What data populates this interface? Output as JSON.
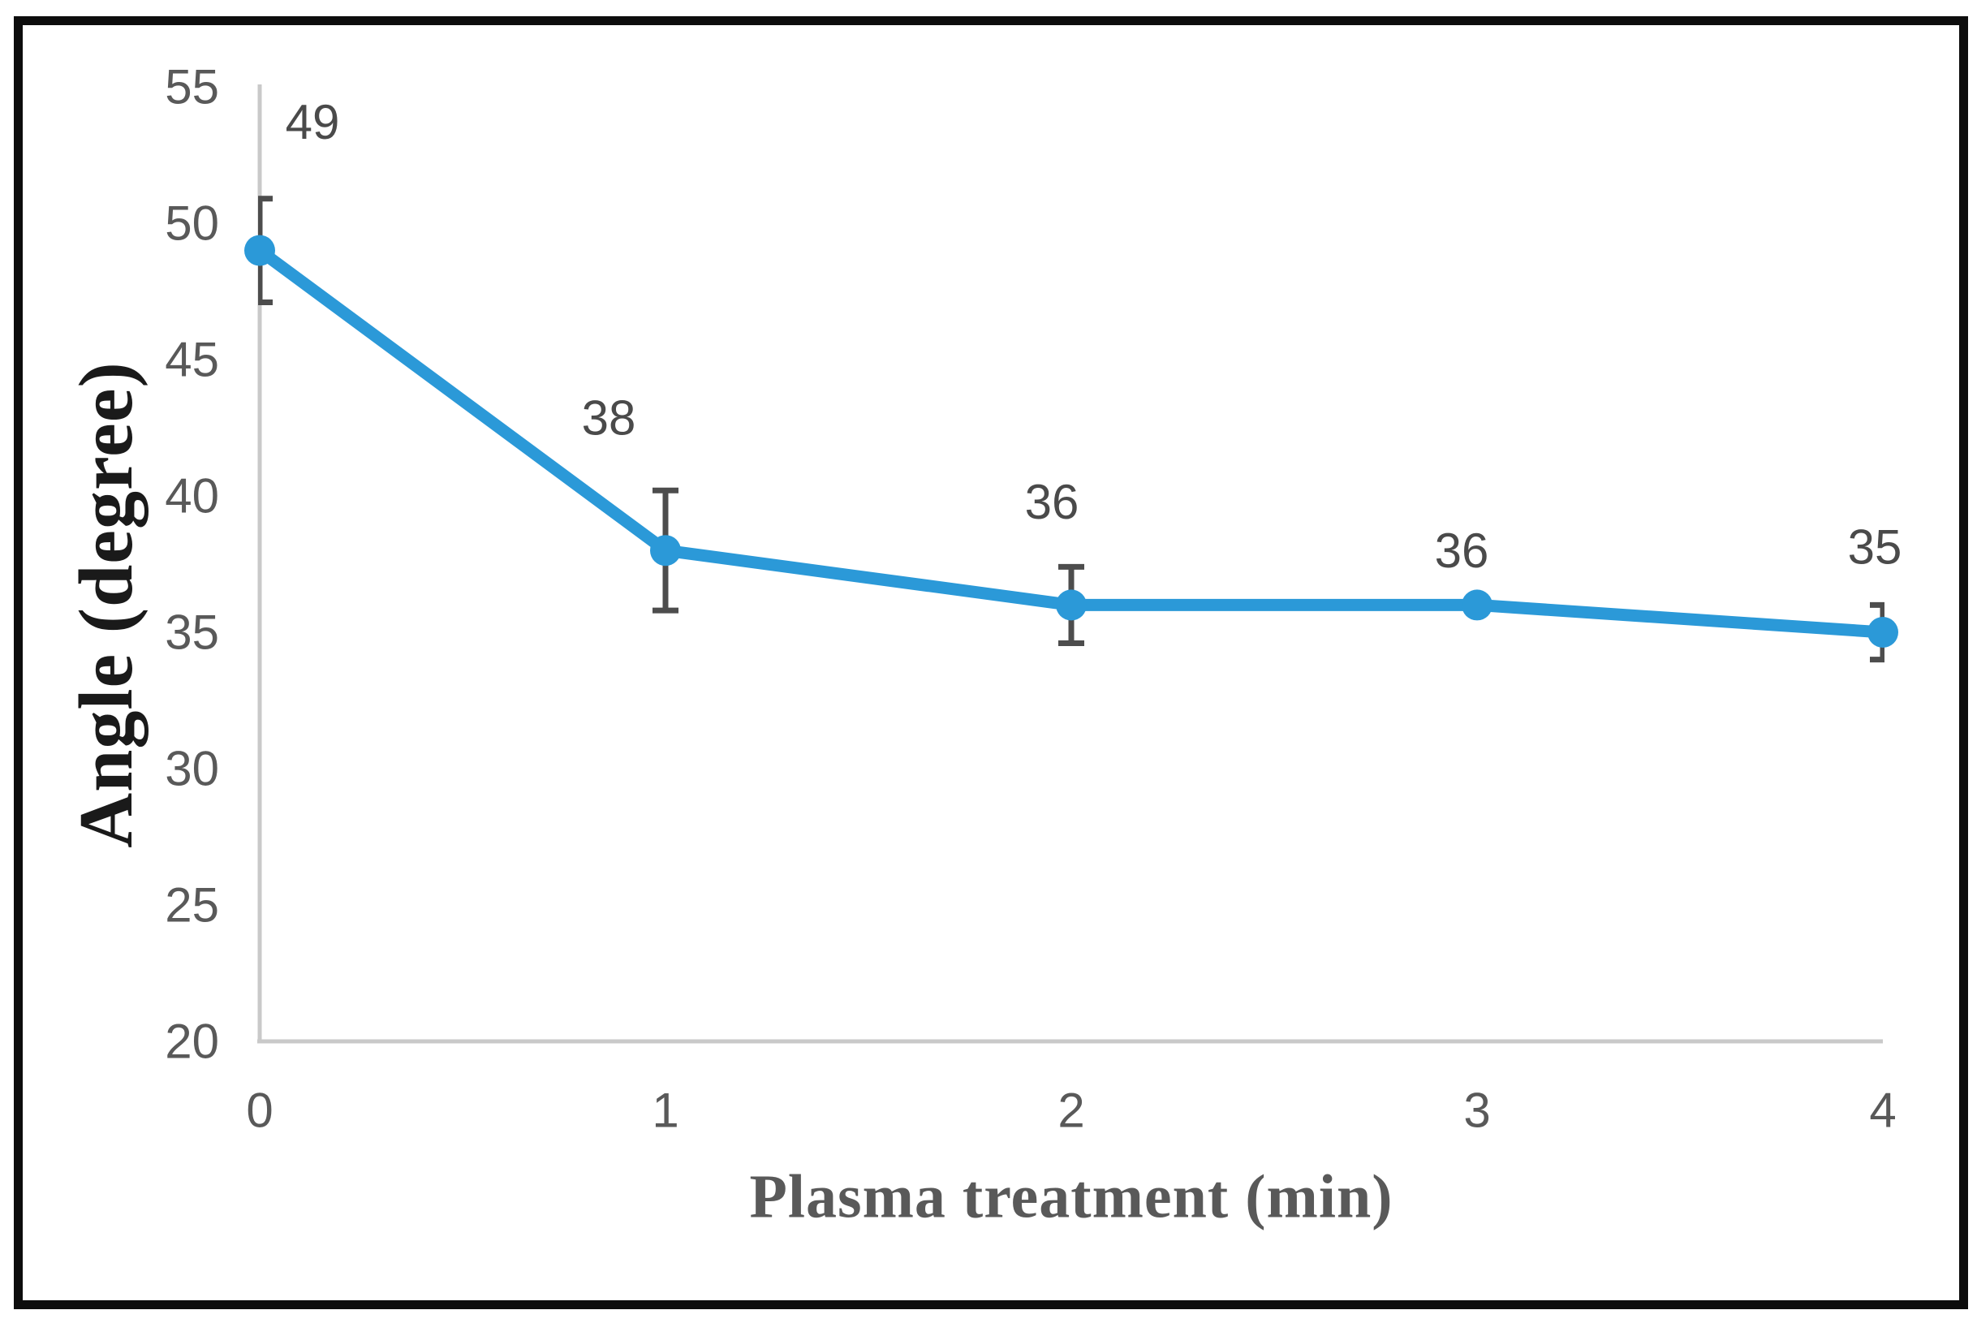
{
  "chart_data": {
    "type": "line",
    "title": "",
    "xlabel": "Plasma treatment (min)",
    "ylabel": "Angle (degree)",
    "x": [
      0,
      1,
      2,
      3,
      4
    ],
    "values": [
      49,
      38,
      36,
      36,
      35
    ],
    "data_labels": [
      "49",
      "38",
      "36",
      "36",
      "35"
    ],
    "error_bars_plus_minus": [
      1.9,
      2.2,
      1.4,
      0,
      1.0
    ],
    "x_ticks": [
      "0",
      "1",
      "2",
      "3",
      "4"
    ],
    "y_ticks": [
      "55",
      "50",
      "45",
      "40",
      "35",
      "30",
      "25",
      "20"
    ],
    "xlim": [
      0,
      4
    ],
    "ylim": [
      20,
      55
    ],
    "grid": false,
    "legend": "none",
    "marker": "circle",
    "colors": {
      "series": "#2B99D8",
      "error_bar": "#4D4D4D",
      "tick_label": "#595959",
      "data_label": "#4A4A4A",
      "axis_line": "#C9C9C9",
      "x_title": "#595959",
      "y_title": "#1A1A1A",
      "frame": "#0D0D0D",
      "background": "#FFFFFF"
    }
  }
}
